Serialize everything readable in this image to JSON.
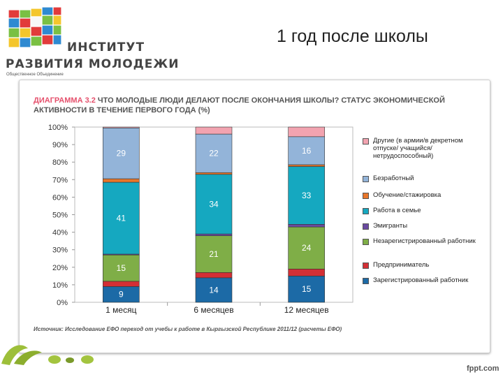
{
  "header": {
    "org_line1": "ИНСТИТУТ",
    "org_line2": "РАЗВИТИЯ МОЛОДЕЖИ",
    "org_sub": "Общественное Объединение",
    "slide_title": "1 год после школы"
  },
  "chart_header": {
    "number": "ДИАГРАММА 3.2",
    "title": "ЧТО МОЛОДЫЕ ЛЮДИ ДЕЛАЮТ ПОСЛЕ ОКОНЧАНИЯ ШКОЛЫ? СТАТУС ЭКОНОМИЧЕСКОЙ АКТИВНОСТИ В ТЕЧЕНИЕ ПЕРВОГО ГОДА (%)"
  },
  "chart_data": {
    "type": "bar",
    "stacked": true,
    "categories": [
      "1 месяц",
      "6 месяцев",
      "12 месяцев"
    ],
    "yticks": [
      "0%",
      "10%",
      "20%",
      "30%",
      "40%",
      "50%",
      "60%",
      "70%",
      "80%",
      "90%",
      "100%"
    ],
    "ylim": [
      0,
      100
    ],
    "legend_position": "right",
    "series": [
      {
        "name": "Зарегистрированный работник",
        "color": "#1c6aa6",
        "values": [
          9,
          14,
          15
        ],
        "labels": [
          "9",
          "14",
          "15"
        ]
      },
      {
        "name": "Предприниматель",
        "color": "#d32f35",
        "values": [
          3,
          3,
          4
        ],
        "labels": [
          "",
          "",
          ""
        ]
      },
      {
        "name": "Незарегистрированный работник",
        "color": "#7fae47",
        "values": [
          15,
          21,
          24
        ],
        "labels": [
          "15",
          "21",
          "24"
        ]
      },
      {
        "name": "Эмигранты",
        "color": "#6a4aa0",
        "values": [
          0.5,
          1,
          1.5
        ],
        "labels": [
          "",
          "",
          ""
        ]
      },
      {
        "name": "Работа в семье",
        "color": "#15a8c0",
        "values": [
          41,
          34,
          33
        ],
        "labels": [
          "41",
          "34",
          "33"
        ]
      },
      {
        "name": "Обучение/стажировка",
        "color": "#e8762a",
        "values": [
          2,
          1,
          1
        ],
        "labels": [
          "",
          "",
          ""
        ]
      },
      {
        "name": "Безработный",
        "color": "#93b4d9",
        "values": [
          29,
          22,
          16
        ],
        "labels": [
          "29",
          "22",
          "16"
        ]
      },
      {
        "name": "Другие (в армии/в декретном отпуске/ учащийся/ нетрудоспособный)",
        "color": "#f2a3b0",
        "values": [
          0.5,
          4,
          5.5
        ],
        "labels": [
          "",
          "",
          ""
        ]
      }
    ]
  },
  "legend_order": [
    7,
    6,
    5,
    4,
    3,
    2,
    1,
    0
  ],
  "source": "Источник: Исследование ЕФО переход от учебы к работе в Кыргызской Республике 2011/12 (расчеты ЕФО)",
  "footer": {
    "brand": "fppt.com"
  }
}
